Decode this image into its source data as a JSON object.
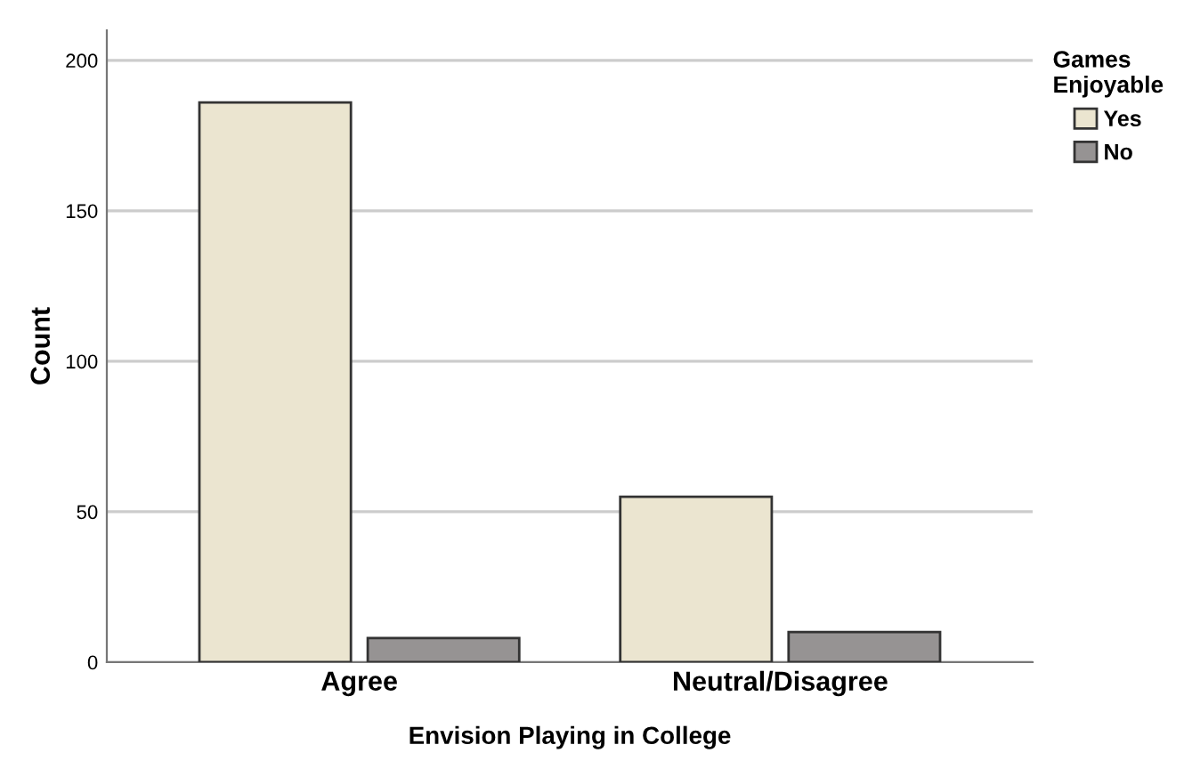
{
  "chart_data": {
    "type": "bar",
    "xlabel": "Envision Playing in College",
    "ylabel": "Count",
    "legend_title": "Games\nEnjoyable",
    "categories": [
      "Agree",
      "Neutral/Disagree"
    ],
    "series": [
      {
        "name": "Yes",
        "color": "#ebe5d0",
        "values": [
          186,
          55
        ]
      },
      {
        "name": "No",
        "color": "#969393",
        "values": [
          8,
          10
        ]
      }
    ],
    "ylim": [
      0,
      210
    ],
    "yticks": [
      0,
      50,
      100,
      150,
      200
    ],
    "grid": "y",
    "legend": "top right"
  }
}
